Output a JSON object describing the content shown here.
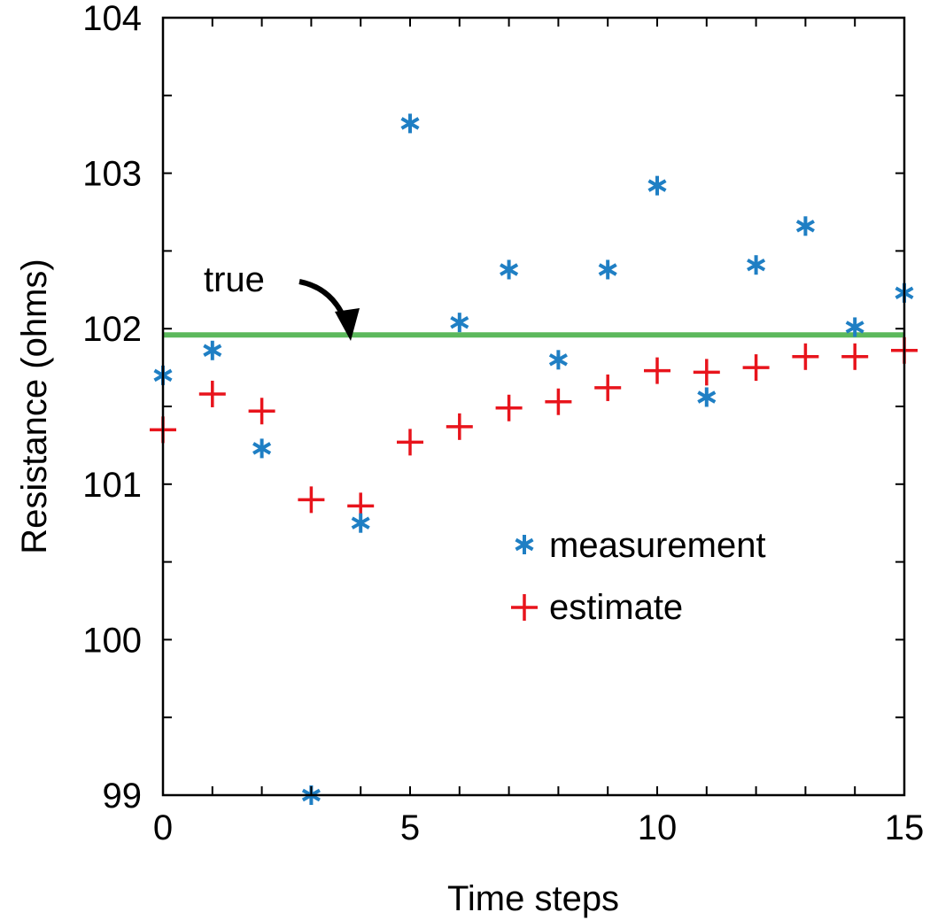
{
  "chart_data": {
    "type": "scatter",
    "xlabel": "Time steps",
    "ylabel": "Resistance (ohms)",
    "xlim": [
      0,
      15
    ],
    "ylim": [
      99,
      104
    ],
    "xticks": [
      0,
      5,
      10,
      15
    ],
    "xtick_labels": [
      "0",
      "5",
      "10",
      "15"
    ],
    "yticks": [
      99,
      100,
      101,
      102,
      103,
      104
    ],
    "ytick_labels": [
      "99",
      "100",
      "101",
      "102",
      "103",
      "104"
    ],
    "grid": false,
    "legend_position": "lower-right",
    "series": [
      {
        "name": "measurement",
        "marker": "asterisk",
        "color": "#1f7fc4",
        "x": [
          0,
          1,
          2,
          3,
          4,
          5,
          6,
          7,
          8,
          9,
          10,
          11,
          12,
          13,
          14,
          15
        ],
        "y": [
          101.7,
          101.86,
          101.23,
          99.0,
          100.75,
          103.32,
          102.04,
          102.38,
          101.8,
          102.38,
          102.92,
          101.56,
          102.41,
          102.66,
          102.01,
          102.23
        ]
      },
      {
        "name": "estimate",
        "marker": "plus",
        "color": "#e8141c",
        "x": [
          0,
          1,
          2,
          3,
          4,
          5,
          6,
          7,
          8,
          9,
          10,
          11,
          12,
          13,
          14,
          15
        ],
        "y": [
          101.35,
          101.58,
          101.47,
          100.9,
          100.86,
          101.27,
          101.37,
          101.49,
          101.53,
          101.62,
          101.73,
          101.72,
          101.75,
          101.82,
          101.82,
          101.86
        ]
      }
    ],
    "reference_line": {
      "label": "true",
      "y": 101.96,
      "color": "#5cb85c"
    }
  }
}
